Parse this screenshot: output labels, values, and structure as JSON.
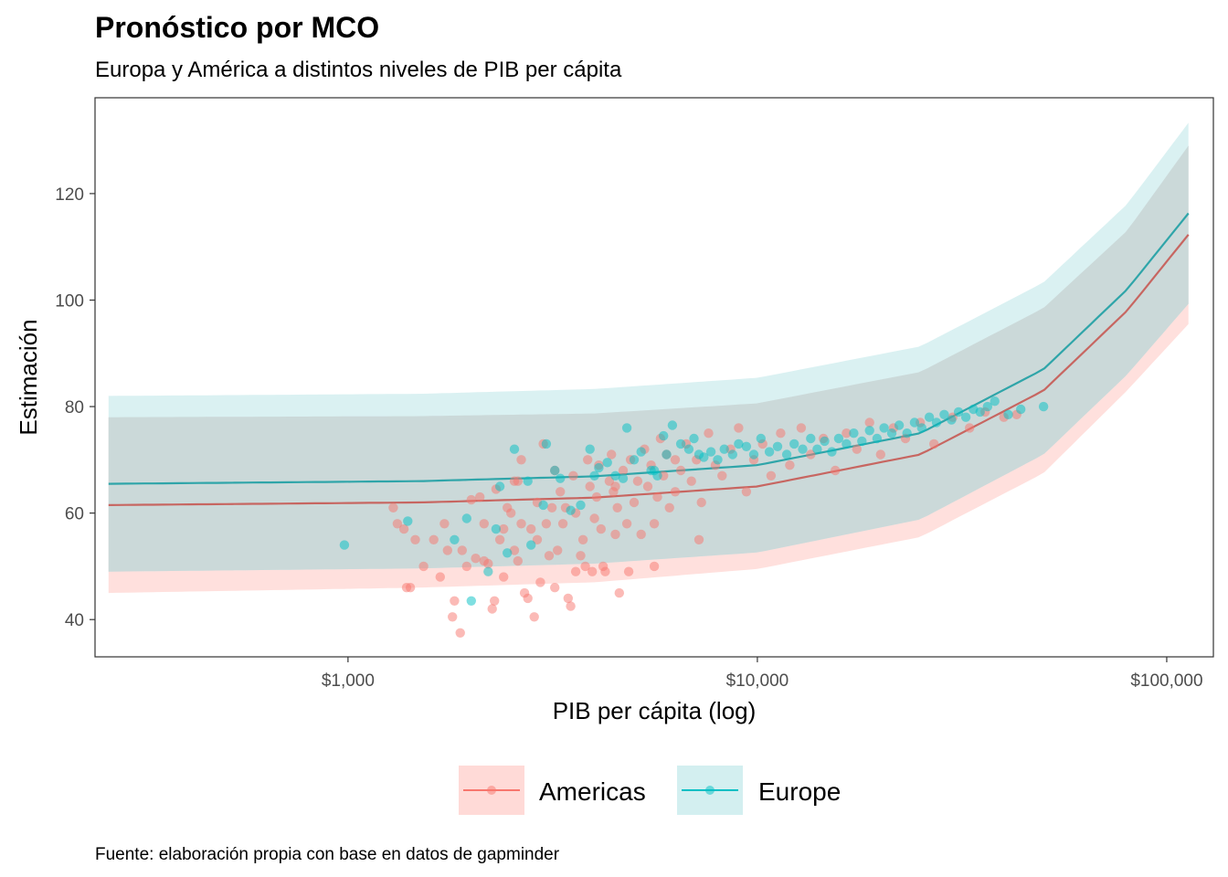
{
  "chart_data": {
    "type": "scatter",
    "title": "Pronóstico por MCO",
    "subtitle": "Europa y América a distintos niveles de PIB per cápita",
    "xlabel": "PIB per cápita (log)",
    "ylabel": "Estimación",
    "caption": "Fuente: elaboración propia con base en datos de gapminder",
    "x_scale": "log10",
    "xlim": [
      241,
      130000
    ],
    "ylim": [
      33,
      138
    ],
    "x_ticks": [
      {
        "value": 1000,
        "label": "$1,000"
      },
      {
        "value": 10000,
        "label": "$10,000"
      },
      {
        "value": 100000,
        "label": "$100,000"
      }
    ],
    "y_ticks": [
      {
        "value": 40,
        "label": "40"
      },
      {
        "value": 60,
        "label": "60"
      },
      {
        "value": 80,
        "label": "80"
      },
      {
        "value": 100,
        "label": "100"
      },
      {
        "value": 120,
        "label": "120"
      }
    ],
    "grid": false,
    "legend_position": "bottom",
    "series": [
      {
        "name": "Americas",
        "color": "#F8766D",
        "fit": {
          "x": [
            260,
            1500,
            4000,
            10000,
            25000,
            50000,
            80000,
            113000
          ],
          "y": [
            61.5,
            62.0,
            62.9,
            65.0,
            71.0,
            83.0,
            98.0,
            112.3
          ],
          "lower": [
            45.0,
            46.0,
            47.0,
            49.5,
            55.5,
            67.5,
            83.0,
            95.5
          ],
          "upper": [
            78.0,
            78.2,
            78.7,
            80.6,
            86.5,
            98.5,
            113.0,
            129.0
          ]
        },
        "points": [
          [
            1290,
            61
          ],
          [
            1320,
            58
          ],
          [
            1370,
            57
          ],
          [
            1390,
            46
          ],
          [
            1420,
            46
          ],
          [
            1460,
            55
          ],
          [
            1530,
            50
          ],
          [
            1620,
            55
          ],
          [
            1680,
            48
          ],
          [
            1720,
            58
          ],
          [
            1750,
            53
          ],
          [
            1800,
            40.5
          ],
          [
            1820,
            43.5
          ],
          [
            1880,
            37.5
          ],
          [
            1900,
            53
          ],
          [
            1950,
            50
          ],
          [
            2000,
            62.5
          ],
          [
            2050,
            51.5
          ],
          [
            2100,
            63
          ],
          [
            2150,
            58
          ],
          [
            2150,
            51
          ],
          [
            2200,
            50.5
          ],
          [
            2250,
            42
          ],
          [
            2280,
            43.5
          ],
          [
            2300,
            64.5
          ],
          [
            2350,
            55
          ],
          [
            2400,
            48
          ],
          [
            2400,
            57
          ],
          [
            2450,
            61
          ],
          [
            2500,
            60
          ],
          [
            2550,
            66
          ],
          [
            2550,
            53
          ],
          [
            2600,
            51
          ],
          [
            2650,
            58
          ],
          [
            2650,
            70
          ],
          [
            2700,
            45
          ],
          [
            2750,
            44
          ],
          [
            2800,
            57
          ],
          [
            2850,
            40.5
          ],
          [
            2900,
            55
          ],
          [
            2900,
            62
          ],
          [
            2950,
            47
          ],
          [
            3000,
            73
          ],
          [
            3050,
            58
          ],
          [
            3100,
            52
          ],
          [
            3150,
            61
          ],
          [
            3200,
            68
          ],
          [
            3200,
            46
          ],
          [
            3250,
            53
          ],
          [
            3300,
            64
          ],
          [
            3350,
            58
          ],
          [
            3400,
            61
          ],
          [
            3450,
            44
          ],
          [
            3500,
            42.5
          ],
          [
            3550,
            67
          ],
          [
            3600,
            60
          ],
          [
            3700,
            52
          ],
          [
            3750,
            55
          ],
          [
            3800,
            50
          ],
          [
            3850,
            70
          ],
          [
            3900,
            65
          ],
          [
            3950,
            49
          ],
          [
            4000,
            59
          ],
          [
            4050,
            63
          ],
          [
            4100,
            69
          ],
          [
            4150,
            57
          ],
          [
            4200,
            50
          ],
          [
            4250,
            49
          ],
          [
            4350,
            66
          ],
          [
            4400,
            71
          ],
          [
            4450,
            64
          ],
          [
            4500,
            56
          ],
          [
            4550,
            61
          ],
          [
            4600,
            45
          ],
          [
            4700,
            68
          ],
          [
            4800,
            58
          ],
          [
            4900,
            70
          ],
          [
            5000,
            62
          ],
          [
            5100,
            66
          ],
          [
            5200,
            56
          ],
          [
            5300,
            72
          ],
          [
            5400,
            65
          ],
          [
            5500,
            69
          ],
          [
            5600,
            58
          ],
          [
            5700,
            63
          ],
          [
            5800,
            74
          ],
          [
            5900,
            67
          ],
          [
            6000,
            71
          ],
          [
            6100,
            61
          ],
          [
            6300,
            64
          ],
          [
            6500,
            68
          ],
          [
            6700,
            73
          ],
          [
            6900,
            66
          ],
          [
            7100,
            70
          ],
          [
            7300,
            62
          ],
          [
            7600,
            75
          ],
          [
            7900,
            69
          ],
          [
            8200,
            67
          ],
          [
            8600,
            72
          ],
          [
            9000,
            76
          ],
          [
            9400,
            64
          ],
          [
            9800,
            70
          ],
          [
            10300,
            73
          ],
          [
            10800,
            67
          ],
          [
            11400,
            75
          ],
          [
            12000,
            69
          ],
          [
            12800,
            76
          ],
          [
            13500,
            71
          ],
          [
            14500,
            74
          ],
          [
            15500,
            68
          ],
          [
            16500,
            75
          ],
          [
            17500,
            72
          ],
          [
            18800,
            77
          ],
          [
            20000,
            71
          ],
          [
            21500,
            76
          ],
          [
            23000,
            74
          ],
          [
            25000,
            77
          ],
          [
            27000,
            73
          ],
          [
            30000,
            78
          ],
          [
            33000,
            76
          ],
          [
            36000,
            79
          ],
          [
            40000,
            78
          ],
          [
            43000,
            78.5
          ],
          [
            4850,
            49
          ],
          [
            2600,
            66
          ],
          [
            3600,
            49
          ],
          [
            6300,
            70
          ],
          [
            7200,
            55
          ],
          [
            5600,
            50
          ],
          [
            4500,
            65
          ]
        ]
      },
      {
        "name": "Europe",
        "color": "#00BFC4",
        "fit": {
          "x": [
            260,
            1500,
            4000,
            10000,
            25000,
            50000,
            80000,
            113000
          ],
          "y": [
            65.5,
            66.0,
            66.9,
            69.0,
            75.0,
            87.0,
            102.0,
            116.3
          ],
          "lower": [
            49.0,
            49.6,
            50.5,
            52.6,
            58.8,
            71.0,
            86.0,
            99.3
          ],
          "upper": [
            82.0,
            82.4,
            83.3,
            85.4,
            91.3,
            103.3,
            118.0,
            133.3
          ]
        },
        "points": [
          [
            980,
            54
          ],
          [
            1400,
            58.5
          ],
          [
            1820,
            55
          ],
          [
            1950,
            59
          ],
          [
            2000,
            43.5
          ],
          [
            2200,
            49
          ],
          [
            2350,
            65
          ],
          [
            2450,
            52.5
          ],
          [
            2550,
            72
          ],
          [
            2750,
            66
          ],
          [
            2800,
            54
          ],
          [
            3000,
            61.5
          ],
          [
            3050,
            73
          ],
          [
            3200,
            68
          ],
          [
            3300,
            66.5
          ],
          [
            3500,
            60.5
          ],
          [
            3700,
            61.5
          ],
          [
            3900,
            72
          ],
          [
            4000,
            67
          ],
          [
            4100,
            68.5
          ],
          [
            4300,
            69.5
          ],
          [
            4500,
            67
          ],
          [
            4700,
            66.5
          ],
          [
            4800,
            76
          ],
          [
            5000,
            70
          ],
          [
            5200,
            71.5
          ],
          [
            5500,
            68
          ],
          [
            5700,
            67
          ],
          [
            5900,
            74.5
          ],
          [
            6000,
            71
          ],
          [
            6200,
            76.5
          ],
          [
            6500,
            73
          ],
          [
            6800,
            72
          ],
          [
            7000,
            74
          ],
          [
            7200,
            71
          ],
          [
            7400,
            70.5
          ],
          [
            7700,
            71.5
          ],
          [
            8000,
            70
          ],
          [
            8300,
            72
          ],
          [
            8700,
            71
          ],
          [
            9000,
            73
          ],
          [
            9400,
            72.5
          ],
          [
            9800,
            71
          ],
          [
            10200,
            74
          ],
          [
            10700,
            71.5
          ],
          [
            11200,
            72.5
          ],
          [
            11800,
            71
          ],
          [
            12300,
            73
          ],
          [
            12900,
            72
          ],
          [
            13500,
            74
          ],
          [
            14000,
            72
          ],
          [
            14600,
            73.5
          ],
          [
            15200,
            71.5
          ],
          [
            15800,
            74
          ],
          [
            16500,
            73
          ],
          [
            17200,
            75
          ],
          [
            18000,
            73.5
          ],
          [
            18800,
            75.5
          ],
          [
            19600,
            74
          ],
          [
            20400,
            76
          ],
          [
            21300,
            75
          ],
          [
            22200,
            76.5
          ],
          [
            23200,
            75
          ],
          [
            24200,
            77
          ],
          [
            25200,
            76
          ],
          [
            26300,
            78
          ],
          [
            27400,
            77
          ],
          [
            28600,
            78.5
          ],
          [
            29800,
            77.5
          ],
          [
            31000,
            79
          ],
          [
            32300,
            78
          ],
          [
            33700,
            79.5
          ],
          [
            35000,
            79
          ],
          [
            36500,
            80
          ],
          [
            38000,
            81
          ],
          [
            41000,
            78.5
          ],
          [
            44000,
            79.5
          ],
          [
            50000,
            80
          ],
          [
            2300,
            57
          ],
          [
            5600,
            68
          ]
        ]
      }
    ]
  }
}
